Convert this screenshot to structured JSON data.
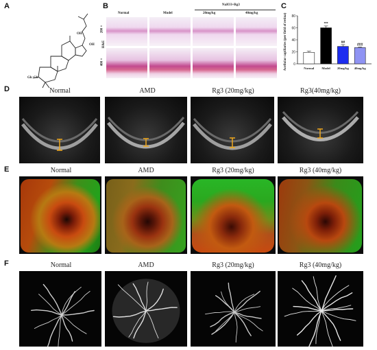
{
  "panels": {
    "A": {
      "letter": "A",
      "mol_labels": {
        "oh1": "OH",
        "oh2": "OH",
        "glc": "Glc Glc"
      }
    },
    "B": {
      "letter": "B",
      "group_label": "NaIO3+Rg3",
      "columns": [
        "Normal",
        "Model",
        "20mg/kg",
        "40mg/kg"
      ],
      "row_labels": [
        "200 ×",
        "400 ×"
      ],
      "stain": "H&E"
    },
    "C": {
      "letter": "C"
    },
    "D": {
      "letter": "D",
      "labels": [
        "Normal",
        "AMD",
        "Rg3 (20mg/kg)",
        "Rg3(40mg/kg)"
      ]
    },
    "E": {
      "letter": "E",
      "labels": [
        "Normal",
        "AMD",
        "Rg3 (20mg/kg)",
        "Rg3 (40mg/kg)"
      ]
    },
    "F": {
      "letter": "F",
      "labels": [
        "Normal",
        "AMD",
        "Rg3 (20mg/kg)",
        "Rg3 (40mg/kg)"
      ]
    }
  },
  "chart_data": {
    "type": "bar",
    "ylabel": "Acellular capillaries (per field of retina)",
    "categories": [
      "Normal",
      "Model",
      "20mg/kg",
      "40mg/kg"
    ],
    "values": [
      19,
      60,
      29,
      27
    ],
    "errors": [
      2,
      3,
      3,
      1
    ],
    "significance": [
      "",
      "***",
      "##",
      "###"
    ],
    "ylim": [
      0,
      80
    ],
    "yticks": [
      0,
      20,
      40,
      60,
      80
    ],
    "colors": {
      "Normal": "#ffffff",
      "Model": "#000000",
      "20mg/kg": "#1d2df0",
      "40mg/kg": "#8f93f3"
    }
  },
  "colors": {
    "oct_marker": "#f0a81c"
  }
}
